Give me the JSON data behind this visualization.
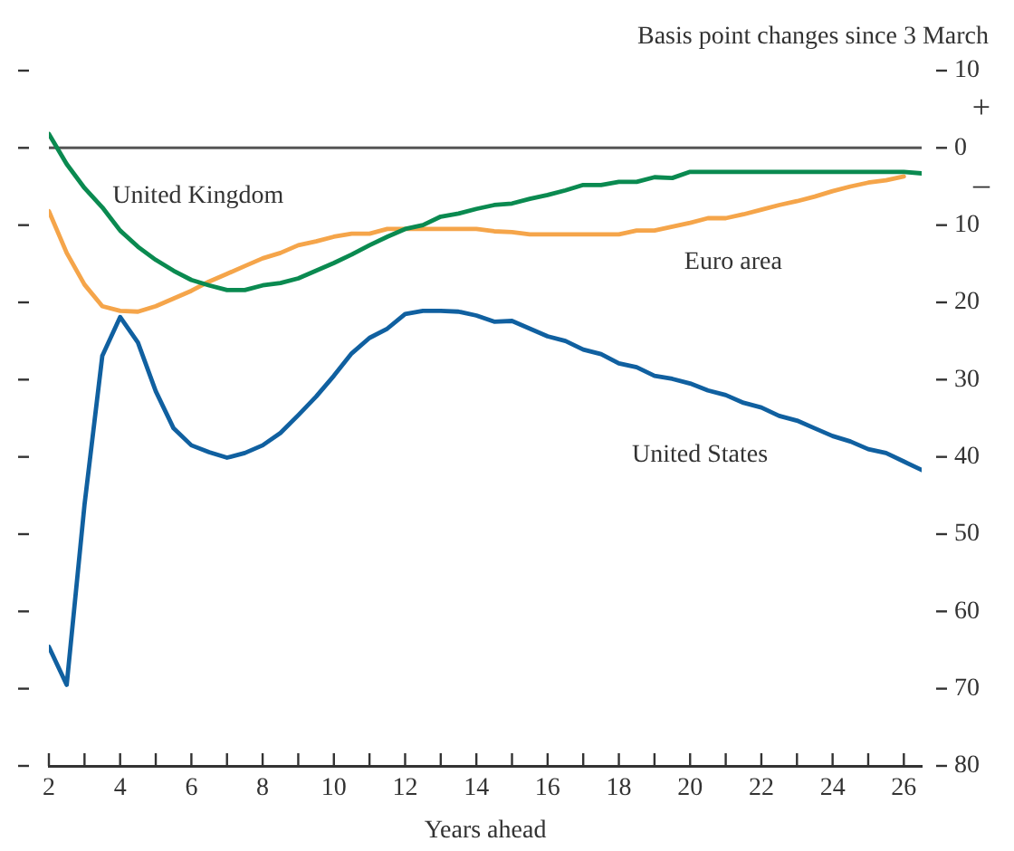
{
  "chart_data": {
    "type": "line",
    "ylabel": "Basis point changes since 3 March",
    "xlabel": "Years ahead",
    "annotations": [
      "+",
      "–"
    ],
    "xlim": [
      2,
      26.5
    ],
    "xticks": [
      2,
      {
        "value": 3,
        "label": null
      },
      4,
      {
        "value": 5,
        "label": null
      },
      6,
      {
        "value": 7,
        "label": null
      },
      8,
      {
        "value": 9,
        "label": null
      },
      10,
      {
        "value": 11,
        "label": null
      },
      12,
      {
        "value": 13,
        "label": null
      },
      14,
      {
        "value": 15,
        "label": null
      },
      16,
      {
        "value": 17,
        "label": null
      },
      18,
      {
        "value": 19,
        "label": null
      },
      20,
      {
        "value": 21,
        "label": null
      },
      22,
      {
        "value": 23,
        "label": null
      },
      24,
      {
        "value": 25,
        "label": null
      },
      26
    ],
    "ylim": [
      -80,
      10
    ],
    "yticks": [
      10,
      0,
      {
        "value": -10,
        "label": "10"
      },
      {
        "value": -20,
        "label": "20"
      },
      {
        "value": -30,
        "label": "30"
      },
      {
        "value": -40,
        "label": "40"
      },
      {
        "value": -50,
        "label": "50"
      },
      {
        "value": -60,
        "label": "60"
      },
      {
        "value": -70,
        "label": "70"
      },
      {
        "value": -80,
        "label": "80"
      }
    ],
    "grid": false,
    "legend": false,
    "marker": "none",
    "line_style": "solid",
    "ref_lines": [
      {
        "axis": "y",
        "value": 0,
        "label": null,
        "color": "#555555"
      }
    ],
    "x": [
      2,
      2.5,
      3,
      3.5,
      4,
      4.5,
      5,
      5.5,
      6,
      6.5,
      7,
      7.5,
      8,
      8.5,
      9,
      9.5,
      10,
      10.5,
      11,
      11.5,
      12,
      12.5,
      13,
      13.5,
      14,
      14.5,
      15,
      15.5,
      16,
      16.5,
      17,
      17.5,
      18,
      18.5,
      19,
      19.5,
      20,
      20.5,
      21,
      21.5,
      22,
      22.5,
      23,
      23.5,
      24,
      24.5,
      25,
      25.5,
      26,
      26.5
    ],
    "series": [
      {
        "name": "United Kingdom",
        "color": "#0a8a50",
        "values": [
          1.8,
          -2.1,
          -5.2,
          -7.7,
          -10.7,
          -12.8,
          -14.5,
          -15.9,
          -17.1,
          -17.8,
          -18.4,
          -18.4,
          -17.8,
          -17.5,
          -16.9,
          -15.9,
          -14.9,
          -13.8,
          -12.6,
          -11.5,
          -10.5,
          -10,
          -8.9,
          -8.5,
          -7.9,
          -7.4,
          -7.2,
          -6.6,
          -6.1,
          -5.5,
          -4.8,
          -4.8,
          -4.4,
          -4.4,
          -3.8,
          -3.9,
          -3.1,
          -3.1,
          -3.1,
          -3.1,
          -3.1,
          -3.1,
          -3.1,
          -3.1,
          -3.1,
          -3.1,
          -3.1,
          -3.1,
          -3.1,
          -3.3
        ]
      },
      {
        "name": "Euro area",
        "color": "#f5a54a",
        "values": [
          -8.2,
          -13.6,
          -17.7,
          -20.5,
          -21.1,
          -21.2,
          -20.5,
          -19.5,
          -18.5,
          -17.3,
          -16.3,
          -15.3,
          -14.3,
          -13.6,
          -12.6,
          -12.1,
          -11.5,
          -11.1,
          -11.1,
          -10.5,
          -10.5,
          -10.5,
          -10.5,
          -10.5,
          -10.5,
          -10.8,
          -10.9,
          -11.2,
          -11.2,
          -11.2,
          -11.2,
          -11.2,
          -11.2,
          -10.7,
          -10.7,
          -10.2,
          -9.7,
          -9.1,
          -9.1,
          -8.6,
          -8,
          -7.4,
          -6.9,
          -6.3,
          -5.6,
          -5,
          -4.5,
          -4.2,
          -3.7,
          null
        ]
      },
      {
        "name": "United States",
        "color": "#1060a0",
        "values": [
          -64.6,
          -69.5,
          -46.2,
          -26.9,
          -21.9,
          -25.2,
          -31.5,
          -36.3,
          -38.5,
          -39.4,
          -40.1,
          -39.5,
          -38.5,
          -36.9,
          -34.6,
          -32.2,
          -29.5,
          -26.6,
          -24.6,
          -23.4,
          -21.5,
          -21.1,
          -21.1,
          -21.2,
          -21.7,
          -22.5,
          -22.4,
          -23.4,
          -24.4,
          -25,
          -26.1,
          -26.7,
          -27.9,
          -28.4,
          -29.5,
          -29.9,
          -30.5,
          -31.4,
          -32,
          -33,
          -33.6,
          -34.7,
          -35.3,
          -36.3,
          -37.3,
          -38,
          -39,
          -39.5,
          -40.6,
          -41.7
        ]
      }
    ]
  }
}
